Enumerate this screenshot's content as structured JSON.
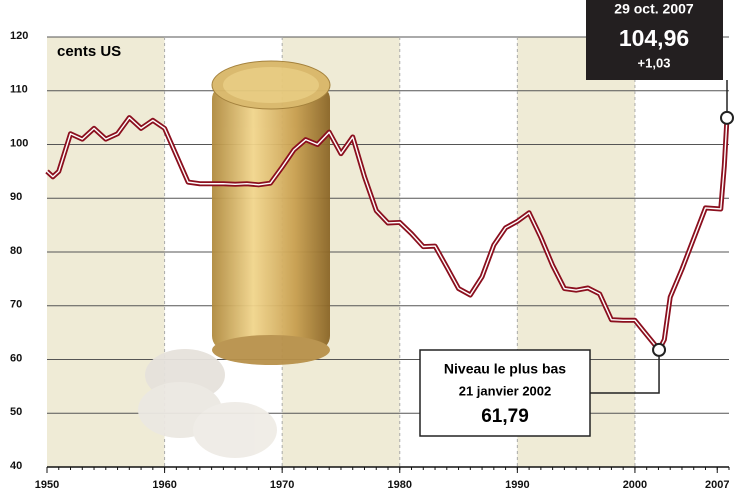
{
  "chart_data": {
    "type": "line",
    "unit_label": "cents US",
    "color": "#8b0f1e",
    "x": [
      1950,
      1950.5,
      1951,
      1952,
      1953,
      1954,
      1955,
      1956,
      1957,
      1958,
      1959,
      1960,
      1961,
      1962,
      1963,
      1964,
      1965,
      1966,
      1967,
      1968,
      1969,
      1970,
      1971,
      1972,
      1973,
      1974,
      1975,
      1976,
      1977,
      1978,
      1979,
      1980,
      1981,
      1982,
      1983,
      1984,
      1985,
      1986,
      1987,
      1988,
      1989,
      1990,
      1991,
      1992,
      1993,
      1994,
      1995,
      1996,
      1997,
      1998,
      1999,
      2000,
      2001,
      2002.05,
      2002.5,
      2003,
      2004,
      2005,
      2006,
      2007.3,
      2007.6,
      2007.83
    ],
    "values": [
      95,
      94,
      95,
      102,
      101,
      103,
      101,
      102,
      105,
      103,
      104.5,
      103,
      98,
      93,
      92.7,
      92.7,
      92.7,
      92.6,
      92.7,
      92.5,
      92.8,
      95.8,
      99,
      100.9,
      100,
      102.3,
      98.3,
      101.4,
      94,
      87.7,
      85.4,
      85.5,
      83.4,
      81,
      81.1,
      77.2,
      73.2,
      72,
      75.4,
      81.3,
      84.5,
      85.7,
      87.3,
      82.7,
      77.5,
      73.2,
      72.9,
      73.3,
      72.2,
      67.4,
      67.3,
      67.3,
      64.6,
      61.79,
      63.7,
      71.6,
      76.8,
      82.5,
      88.2,
      88,
      96,
      104.96
    ],
    "xlim": [
      1950,
      2008
    ],
    "xticks": [
      1950,
      1960,
      1970,
      1980,
      1990,
      2000,
      2007
    ],
    "ylim": [
      40,
      120
    ],
    "yticks": [
      40,
      50,
      60,
      70,
      80,
      90,
      100,
      110,
      120
    ],
    "low": {
      "title": "Niveau le plus bas",
      "date": "21 janvier 2002",
      "x": 2002.05,
      "value": 61.79,
      "label": "61,79"
    },
    "last": {
      "date": "29 oct. 2007",
      "x": 2007.83,
      "value": 104.96,
      "label": "104,96",
      "change_label": "+1,03"
    }
  }
}
